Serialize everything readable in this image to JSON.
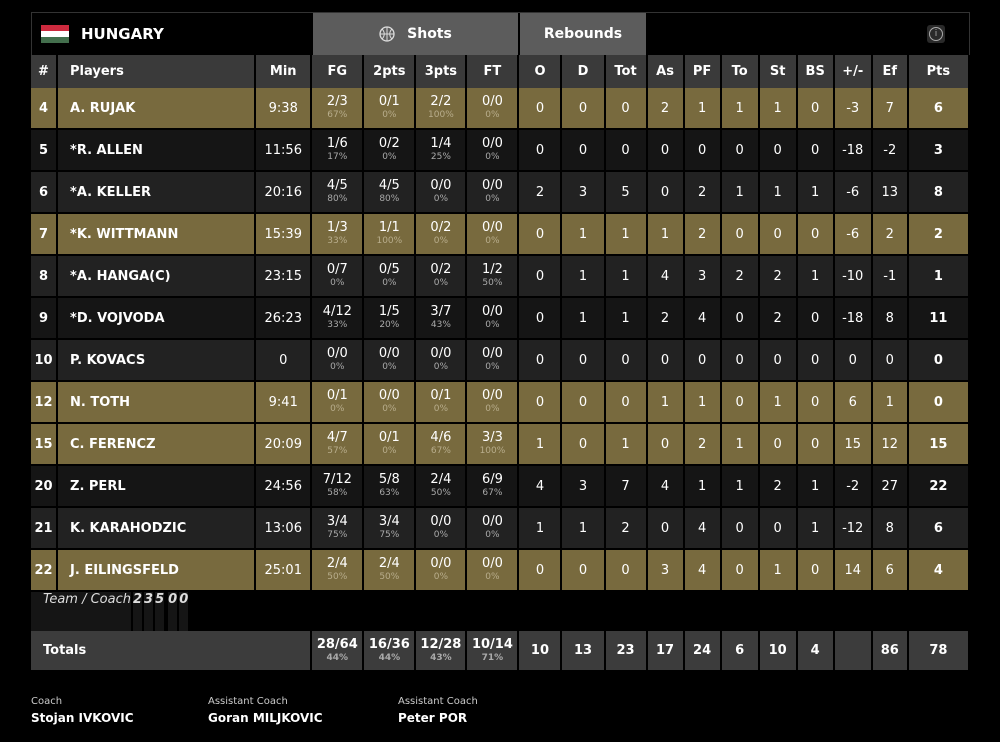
{
  "team": {
    "name": "HUNGARY",
    "flag_colors": [
      "#cd2a3e",
      "#ffffff",
      "#436f4d"
    ]
  },
  "tabs": [
    {
      "label": "Shots",
      "icon": "basketball-icon"
    },
    {
      "label": "Rebounds"
    }
  ],
  "info_icon": "info-icon",
  "colors": {
    "highlight": "#786a3e",
    "header": "#3a3a3a"
  },
  "columns": [
    "#",
    "Players",
    "Min",
    "FG",
    "2pts",
    "3pts",
    "FT",
    "O",
    "D",
    "Tot",
    "As",
    "PF",
    "To",
    "St",
    "BS",
    "+/-",
    "Ef",
    "Pts"
  ],
  "players": [
    {
      "no": "4",
      "name": "A. RUJAK",
      "min": "9:38",
      "fg": [
        "2/3",
        "67%"
      ],
      "p2": [
        "0/1",
        "0%"
      ],
      "p3": [
        "2/2",
        "100%"
      ],
      "ft": [
        "0/0",
        "0%"
      ],
      "stats": [
        "0",
        "0",
        "0",
        "2",
        "1",
        "1",
        "1",
        "0",
        "-3",
        "7",
        "6"
      ],
      "hl": true
    },
    {
      "no": "5",
      "name": "*R. ALLEN",
      "min": "11:56",
      "fg": [
        "1/6",
        "17%"
      ],
      "p2": [
        "0/2",
        "0%"
      ],
      "p3": [
        "1/4",
        "25%"
      ],
      "ft": [
        "0/0",
        "0%"
      ],
      "stats": [
        "0",
        "0",
        "0",
        "0",
        "0",
        "0",
        "0",
        "0",
        "-18",
        "-2",
        "3"
      ]
    },
    {
      "no": "6",
      "name": "*A. KELLER",
      "min": "20:16",
      "fg": [
        "4/5",
        "80%"
      ],
      "p2": [
        "4/5",
        "80%"
      ],
      "p3": [
        "0/0",
        "0%"
      ],
      "ft": [
        "0/0",
        "0%"
      ],
      "stats": [
        "2",
        "3",
        "5",
        "0",
        "2",
        "1",
        "1",
        "1",
        "-6",
        "13",
        "8"
      ]
    },
    {
      "no": "7",
      "name": "*K. WITTMANN",
      "min": "15:39",
      "fg": [
        "1/3",
        "33%"
      ],
      "p2": [
        "1/1",
        "100%"
      ],
      "p3": [
        "0/2",
        "0%"
      ],
      "ft": [
        "0/0",
        "0%"
      ],
      "stats": [
        "0",
        "1",
        "1",
        "1",
        "2",
        "0",
        "0",
        "0",
        "-6",
        "2",
        "2"
      ],
      "hl": true
    },
    {
      "no": "8",
      "name": "*A. HANGA(C)",
      "min": "23:15",
      "fg": [
        "0/7",
        "0%"
      ],
      "p2": [
        "0/5",
        "0%"
      ],
      "p3": [
        "0/2",
        "0%"
      ],
      "ft": [
        "1/2",
        "50%"
      ],
      "stats": [
        "0",
        "1",
        "1",
        "4",
        "3",
        "2",
        "2",
        "1",
        "-10",
        "-1",
        "1"
      ]
    },
    {
      "no": "9",
      "name": "*D. VOJVODA",
      "min": "26:23",
      "fg": [
        "4/12",
        "33%"
      ],
      "p2": [
        "1/5",
        "20%"
      ],
      "p3": [
        "3/7",
        "43%"
      ],
      "ft": [
        "0/0",
        "0%"
      ],
      "stats": [
        "0",
        "1",
        "1",
        "2",
        "4",
        "0",
        "2",
        "0",
        "-18",
        "8",
        "11"
      ]
    },
    {
      "no": "10",
      "name": "P. KOVACS",
      "min": "0",
      "fg": [
        "0/0",
        "0%"
      ],
      "p2": [
        "0/0",
        "0%"
      ],
      "p3": [
        "0/0",
        "0%"
      ],
      "ft": [
        "0/0",
        "0%"
      ],
      "stats": [
        "0",
        "0",
        "0",
        "0",
        "0",
        "0",
        "0",
        "0",
        "0",
        "0",
        "0"
      ]
    },
    {
      "no": "12",
      "name": "N. TOTH",
      "min": "9:41",
      "fg": [
        "0/1",
        "0%"
      ],
      "p2": [
        "0/0",
        "0%"
      ],
      "p3": [
        "0/1",
        "0%"
      ],
      "ft": [
        "0/0",
        "0%"
      ],
      "stats": [
        "0",
        "0",
        "0",
        "1",
        "1",
        "0",
        "1",
        "0",
        "6",
        "1",
        "0"
      ],
      "hl": true
    },
    {
      "no": "15",
      "name": "C. FERENCZ",
      "min": "20:09",
      "fg": [
        "4/7",
        "57%"
      ],
      "p2": [
        "0/1",
        "0%"
      ],
      "p3": [
        "4/6",
        "67%"
      ],
      "ft": [
        "3/3",
        "100%"
      ],
      "stats": [
        "1",
        "0",
        "1",
        "0",
        "2",
        "1",
        "0",
        "0",
        "15",
        "12",
        "15"
      ],
      "hl": true
    },
    {
      "no": "20",
      "name": "Z. PERL",
      "min": "24:56",
      "fg": [
        "7/12",
        "58%"
      ],
      "p2": [
        "5/8",
        "63%"
      ],
      "p3": [
        "2/4",
        "50%"
      ],
      "ft": [
        "6/9",
        "67%"
      ],
      "stats": [
        "4",
        "3",
        "7",
        "4",
        "1",
        "1",
        "2",
        "1",
        "-2",
        "27",
        "22"
      ]
    },
    {
      "no": "21",
      "name": "K. KARAHODZIC",
      "min": "13:06",
      "fg": [
        "3/4",
        "75%"
      ],
      "p2": [
        "3/4",
        "75%"
      ],
      "p3": [
        "0/0",
        "0%"
      ],
      "ft": [
        "0/0",
        "0%"
      ],
      "stats": [
        "1",
        "1",
        "2",
        "0",
        "4",
        "0",
        "0",
        "1",
        "-12",
        "8",
        "6"
      ]
    },
    {
      "no": "22",
      "name": "J. EILINGSFELD",
      "min": "25:01",
      "fg": [
        "2/4",
        "50%"
      ],
      "p2": [
        "2/4",
        "50%"
      ],
      "p3": [
        "0/0",
        "0%"
      ],
      "ft": [
        "0/0",
        "0%"
      ],
      "stats": [
        "0",
        "0",
        "0",
        "3",
        "4",
        "0",
        "1",
        "0",
        "14",
        "6",
        "4"
      ],
      "hl": true
    }
  ],
  "team_row": {
    "label": "Team / Coach",
    "stats": [
      "2",
      "3",
      "5",
      "",
      "0",
      "0",
      "",
      "",
      "",
      "",
      ""
    ]
  },
  "totals": {
    "label": "Totals",
    "fg": [
      "28/64",
      "44%"
    ],
    "p2": [
      "16/36",
      "44%"
    ],
    "p3": [
      "12/28",
      "43%"
    ],
    "ft": [
      "10/14",
      "71%"
    ],
    "stats": [
      "10",
      "13",
      "23",
      "17",
      "24",
      "6",
      "10",
      "4",
      "",
      "86",
      "78"
    ]
  },
  "coaches": [
    {
      "role": "Coach",
      "name": "Stojan IVKOVIC"
    },
    {
      "role": "Assistant Coach",
      "name": "Goran MILJKOVIC"
    },
    {
      "role": "Assistant Coach",
      "name": "Peter POR"
    }
  ]
}
